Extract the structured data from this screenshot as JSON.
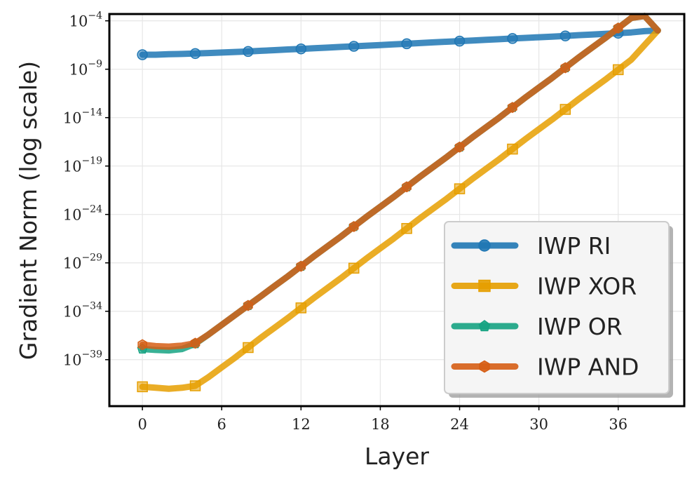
{
  "chart_data": {
    "type": "line",
    "title": "",
    "xlabel": "Layer",
    "ylabel": "Gradient Norm (log scale)",
    "y_scale": "log",
    "xlim": [
      -2.5,
      41
    ],
    "ylim_log10": [
      -43.8,
      -3.3
    ],
    "x_ticks": [
      0,
      6,
      12,
      18,
      24,
      30,
      36
    ],
    "x_tick_labels": [
      "0",
      "6",
      "12",
      "18",
      "24",
      "30",
      "36"
    ],
    "y_ticks_log10": [
      -4,
      -9,
      -14,
      -19,
      -24,
      -29,
      -34,
      -39
    ],
    "y_tick_labels": [
      {
        "base": "10",
        "exp": "−4"
      },
      {
        "base": "10",
        "exp": "−9"
      },
      {
        "base": "10",
        "exp": "−14"
      },
      {
        "base": "10",
        "exp": "−19"
      },
      {
        "base": "10",
        "exp": "−24"
      },
      {
        "base": "10",
        "exp": "−29"
      },
      {
        "base": "10",
        "exp": "−34"
      },
      {
        "base": "10",
        "exp": "−39"
      }
    ],
    "grid": true,
    "legend_position": "lower-right",
    "x": [
      0,
      1,
      2,
      3,
      4,
      5,
      6,
      7,
      8,
      9,
      10,
      11,
      12,
      13,
      14,
      15,
      16,
      17,
      18,
      19,
      20,
      21,
      22,
      23,
      24,
      25,
      26,
      27,
      28,
      29,
      30,
      31,
      32,
      33,
      34,
      35,
      36,
      37,
      38,
      39
    ],
    "series": [
      {
        "name": "IWP RI",
        "color": "#1f77b4",
        "marker": "circle",
        "values_log10": [
          -7.5,
          -7.5,
          -7.45,
          -7.42,
          -7.38,
          -7.33,
          -7.28,
          -7.22,
          -7.17,
          -7.1,
          -7.03,
          -6.96,
          -6.9,
          -6.83,
          -6.77,
          -6.7,
          -6.63,
          -6.57,
          -6.5,
          -6.43,
          -6.37,
          -6.3,
          -6.23,
          -6.16,
          -6.1,
          -6.03,
          -5.96,
          -5.9,
          -5.83,
          -5.76,
          -5.7,
          -5.63,
          -5.56,
          -5.48,
          -5.42,
          -5.35,
          -5.28,
          -5.2,
          -5.07,
          -5.0
        ]
      },
      {
        "name": "IWP XOR",
        "color": "#e69f00",
        "marker": "square",
        "values_log10": [
          -41.8,
          -41.9,
          -42.0,
          -41.9,
          -41.7,
          -40.8,
          -39.8,
          -38.8,
          -37.75,
          -36.7,
          -35.7,
          -34.7,
          -33.65,
          -32.6,
          -31.6,
          -30.6,
          -29.55,
          -28.5,
          -27.5,
          -26.5,
          -25.45,
          -24.4,
          -23.4,
          -22.4,
          -21.35,
          -20.3,
          -19.3,
          -18.3,
          -17.25,
          -16.2,
          -15.2,
          -14.2,
          -13.15,
          -12.1,
          -11.1,
          -10.1,
          -9.05,
          -8.0,
          -6.5,
          -5.0
        ]
      },
      {
        "name": "IWP OR",
        "color": "#16a382",
        "marker": "pentagon",
        "values_log10": [
          -37.9,
          -38.0,
          -38.05,
          -37.9,
          -37.35,
          -36.4,
          -35.4,
          -34.4,
          -33.4,
          -32.4,
          -31.4,
          -30.4,
          -29.35,
          -28.3,
          -27.3,
          -26.3,
          -25.25,
          -24.2,
          -23.2,
          -22.2,
          -21.15,
          -20.1,
          -19.1,
          -18.1,
          -17.05,
          -16.0,
          -15.0,
          -14.0,
          -12.95,
          -11.9,
          -10.9,
          -9.9,
          -8.85,
          -7.8,
          -6.8,
          -5.8,
          -4.75,
          -3.7,
          -3.5,
          -5.0
        ]
      },
      {
        "name": "IWP AND",
        "color": "#d65e15",
        "marker": "hexagon",
        "values_log10": [
          -37.45,
          -37.6,
          -37.65,
          -37.55,
          -37.3,
          -36.4,
          -35.4,
          -34.4,
          -33.4,
          -32.4,
          -31.4,
          -30.4,
          -29.35,
          -28.3,
          -27.3,
          -26.3,
          -25.25,
          -24.2,
          -23.2,
          -22.2,
          -21.15,
          -20.1,
          -19.1,
          -18.1,
          -17.05,
          -16.0,
          -15.0,
          -14.0,
          -12.95,
          -11.9,
          -10.9,
          -9.9,
          -8.85,
          -7.8,
          -6.8,
          -5.8,
          -4.75,
          -3.7,
          -3.5,
          -5.0
        ]
      }
    ]
  }
}
